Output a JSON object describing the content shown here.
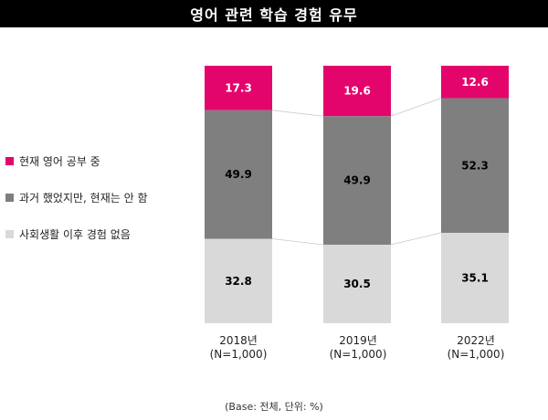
{
  "chart_data": {
    "type": "bar",
    "stacked": true,
    "title": "영어 관련 학습 경험 유무",
    "categories": [
      "2018년",
      "2019년",
      "2022년"
    ],
    "sample_sizes": [
      "(N=1,000)",
      "(N=1,000)",
      "(N=1,000)"
    ],
    "series": [
      {
        "name": "현재 영어 공부 중",
        "values": [
          17.3,
          19.6,
          12.6
        ],
        "display": [
          "17.3",
          "19.6",
          "12.6"
        ],
        "color": "#e4056c"
      },
      {
        "name": "과거 했었지만, 현재는 안 함",
        "values": [
          49.9,
          49.9,
          52.3
        ],
        "display": [
          "49.9",
          "49.9",
          "52.3"
        ],
        "color": "#7f7f7f"
      },
      {
        "name": "사회생활 이후 경험 없음",
        "values": [
          32.8,
          30.5,
          35.1
        ],
        "display": [
          "32.8",
          "30.5",
          "35.1"
        ],
        "color": "#d9d9d9"
      }
    ],
    "ylim": [
      0,
      100
    ],
    "legend_position": "left",
    "grid": false,
    "footnote": "(Base: 전체, 단위: %)"
  }
}
